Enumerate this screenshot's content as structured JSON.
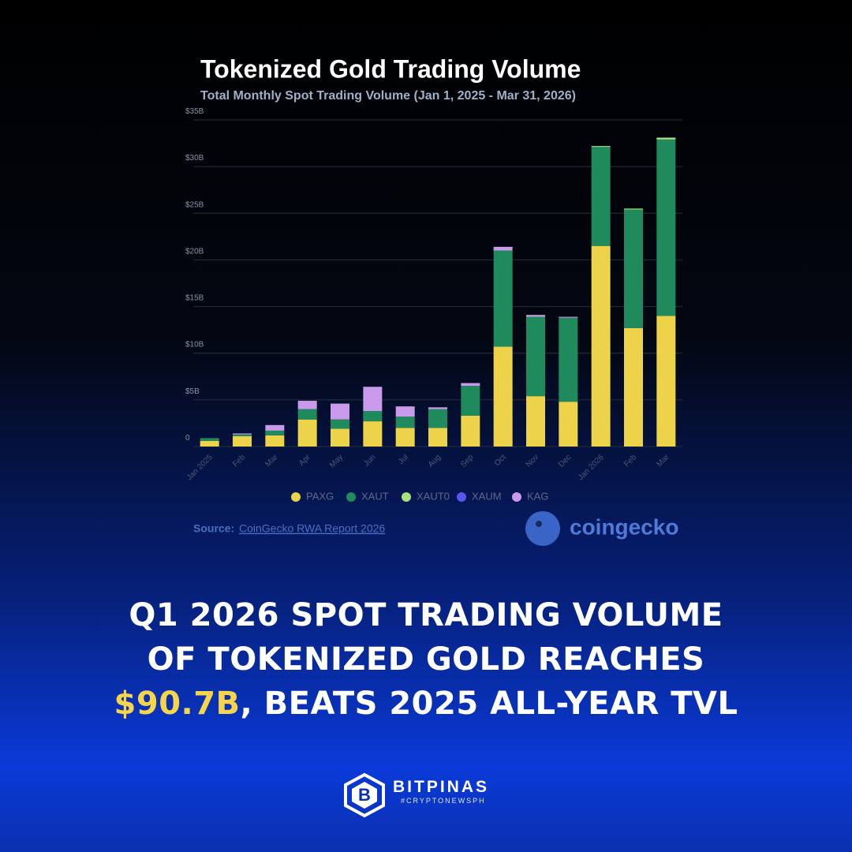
{
  "chart_data": {
    "type": "stacked-bar",
    "title": "Tokenized Gold Trading Volume",
    "subtitle": "Total Monthly Spot Trading Volume (Jan 1, 2025 - Mar 31, 2026)",
    "categories": [
      "Jan 2025",
      "Feb",
      "Mar",
      "Apr",
      "May",
      "Jun",
      "Jul",
      "Aug",
      "Sep",
      "Oct",
      "Nov",
      "Dec",
      "Jan 2026",
      "Feb",
      "Mar"
    ],
    "series": [
      {
        "name": "PAXG",
        "color": "#ecd34a",
        "values": [
          0.6,
          1.1,
          1.2,
          2.9,
          1.9,
          2.7,
          2.0,
          2.0,
          3.3,
          10.7,
          5.4,
          4.8,
          21.5,
          12.7,
          14.0
        ]
      },
      {
        "name": "XAUT",
        "color": "#1f8a5c",
        "values": [
          0.3,
          0.2,
          0.5,
          1.1,
          1.0,
          1.1,
          1.2,
          2.0,
          3.2,
          10.3,
          8.5,
          9.0,
          10.6,
          12.7,
          18.9
        ]
      },
      {
        "name": "XAUT0",
        "color": "#a6e27e",
        "values": [
          0,
          0,
          0,
          0,
          0,
          0,
          0,
          0,
          0,
          0,
          0,
          0,
          0.1,
          0.1,
          0.2
        ]
      },
      {
        "name": "XAUM",
        "color": "#5b55ef",
        "values": [
          0,
          0,
          0,
          0,
          0,
          0,
          0,
          0,
          0,
          0,
          0,
          0,
          0,
          0,
          0
        ]
      },
      {
        "name": "KAG",
        "color": "#c99ae9",
        "values": [
          0,
          0.1,
          0.6,
          0.9,
          1.7,
          2.6,
          1.1,
          0.2,
          0.3,
          0.4,
          0.2,
          0.1,
          0,
          0,
          0
        ]
      }
    ],
    "ylim": [
      0,
      35
    ],
    "yticks": [
      0,
      {
        "value": 5,
        "label": "$5B"
      },
      {
        "value": 10,
        "label": "$10B"
      },
      {
        "value": 15,
        "label": "$15B"
      },
      {
        "value": 20,
        "label": "$20B"
      },
      {
        "value": 25,
        "label": "$25B"
      },
      {
        "value": 30,
        "label": "$30B"
      },
      {
        "value": 35,
        "label": "$35B"
      }
    ],
    "grid": true,
    "legend": "bottom"
  },
  "source": {
    "label": "Source:",
    "link": "CoinGecko RWA Report 2026"
  },
  "logo": "coingecko",
  "headline": {
    "line1": "Q1 2026 SPOT TRADING VOLUME",
    "line2": "OF TOKENIZED GOLD REACHES",
    "highlight": "$90.7B",
    "line3": ", BEATS 2025 ALL-YEAR TVL"
  },
  "brand": {
    "name": "BITPINAS",
    "tag": "#CRYPTONEWSPH"
  }
}
